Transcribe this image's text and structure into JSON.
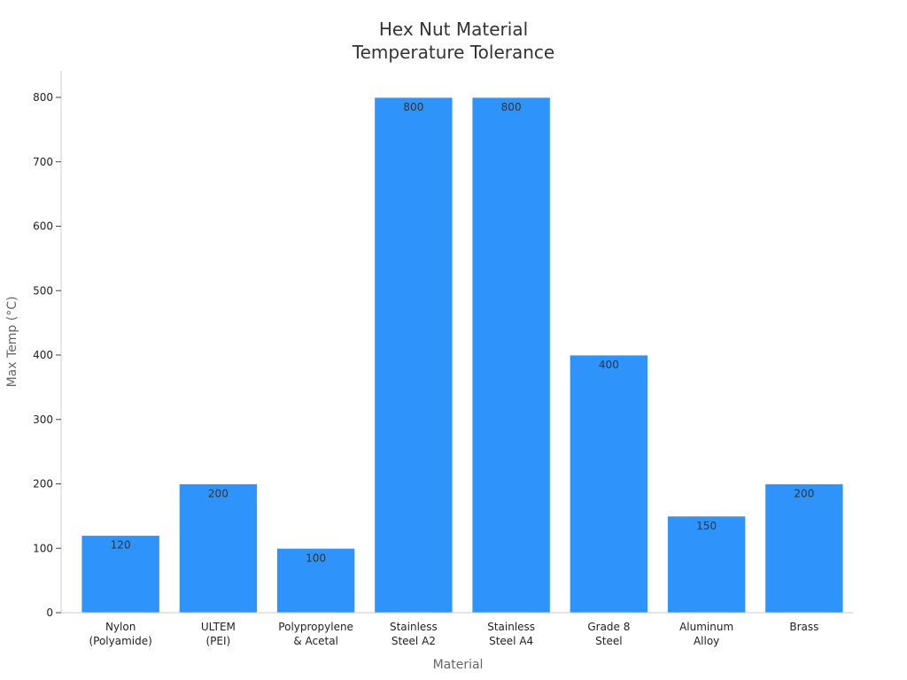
{
  "chart_data": {
    "type": "bar",
    "title": [
      "Hex Nut Material",
      "Temperature Tolerance"
    ],
    "xlabel": "Material",
    "ylabel": "Max Temp (°C)",
    "ylim": [
      0,
      840
    ],
    "yticks": [
      0,
      100,
      200,
      300,
      400,
      500,
      600,
      700,
      800
    ],
    "categories": [
      [
        "Nylon",
        "(Polyamide)"
      ],
      [
        "ULTEM",
        "(PEI)"
      ],
      [
        "Polypropylene",
        "& Acetal"
      ],
      [
        "Stainless",
        "Steel A2"
      ],
      [
        "Stainless",
        "Steel A4"
      ],
      [
        "Grade 8",
        "Steel"
      ],
      [
        "Aluminum",
        "Alloy"
      ],
      [
        "Brass"
      ]
    ],
    "values": [
      120,
      200,
      100,
      800,
      800,
      400,
      150,
      200
    ],
    "bar_color": "#2E93FA",
    "grid": false,
    "legend": "none"
  }
}
